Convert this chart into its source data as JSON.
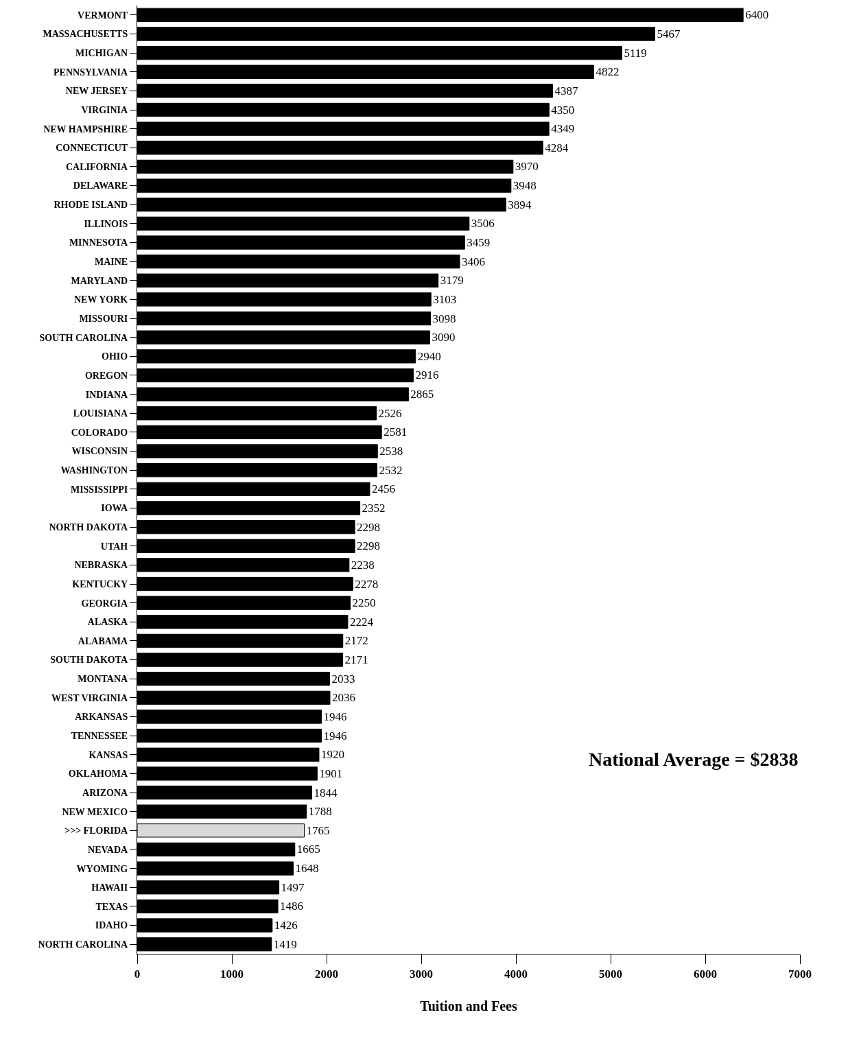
{
  "chart_data": {
    "type": "bar",
    "orientation": "horizontal",
    "xlabel": "Tuition and Fees",
    "categories": [
      "VERMONT",
      "MASSACHUSETTS",
      "MICHIGAN",
      "PENNSYLVANIA",
      "NEW JERSEY",
      "VIRGINIA",
      "NEW HAMPSHIRE",
      "CONNECTICUT",
      "CALIFORNIA",
      "DELAWARE",
      "RHODE ISLAND",
      "ILLINOIS",
      "MINNESOTA",
      "MAINE",
      "MARYLAND",
      "NEW YORK",
      "MISSOURI",
      "SOUTH CAROLINA",
      "OHIO",
      "OREGON",
      "INDIANA",
      "LOUISIANA",
      "COLORADO",
      "WISCONSIN",
      "WASHINGTON",
      "MISSISSIPPI",
      "IOWA",
      "NORTH DAKOTA",
      "UTAH",
      "NEBRASKA",
      "KENTUCKY",
      "GEORGIA",
      "ALASKA",
      "ALABAMA",
      "SOUTH DAKOTA",
      "MONTANA",
      "WEST VIRGINIA",
      "ARKANSAS",
      "TENNESSEE",
      "KANSAS",
      "OKLAHOMA",
      "ARIZONA",
      "NEW MEXICO",
      ">>> FLORIDA",
      "NEVADA",
      "WYOMING",
      "HAWAII",
      "TEXAS",
      "IDAHO",
      "NORTH CAROLINA"
    ],
    "values": [
      6400,
      5467,
      5119,
      4822,
      4387,
      4350,
      4349,
      4284,
      3970,
      3948,
      3894,
      3506,
      3459,
      3406,
      3179,
      3103,
      3098,
      3090,
      2940,
      2916,
      2865,
      2526,
      2581,
      2538,
      2532,
      2456,
      2352,
      2298,
      2298,
      2238,
      2278,
      2250,
      2224,
      2172,
      2171,
      2033,
      2036,
      1946,
      1946,
      1920,
      1901,
      1844,
      1788,
      1765,
      1665,
      1648,
      1497,
      1486,
      1426,
      1419
    ],
    "colors": [
      "#000000",
      "#000000",
      "#000000",
      "#000000",
      "#000000",
      "#000000",
      "#000000",
      "#000000",
      "#000000",
      "#000000",
      "#000000",
      "#000000",
      "#000000",
      "#000000",
      "#000000",
      "#000000",
      "#000000",
      "#000000",
      "#000000",
      "#000000",
      "#000000",
      "#000000",
      "#000000",
      "#000000",
      "#000000",
      "#000000",
      "#000000",
      "#000000",
      "#000000",
      "#000000",
      "#000000",
      "#000000",
      "#000000",
      "#000000",
      "#000000",
      "#000000",
      "#000000",
      "#000000",
      "#000000",
      "#000000",
      "#000000",
      "#000000",
      "#000000",
      "#d9d9d9",
      "#000000",
      "#000000",
      "#000000",
      "#000000",
      "#000000",
      "#000000"
    ],
    "xlim": [
      0,
      7000
    ],
    "xticks": [
      0,
      1000,
      2000,
      3000,
      4000,
      5000,
      6000,
      7000
    ],
    "data_labels": true,
    "annotations": [
      "National Average = $2838"
    ]
  }
}
